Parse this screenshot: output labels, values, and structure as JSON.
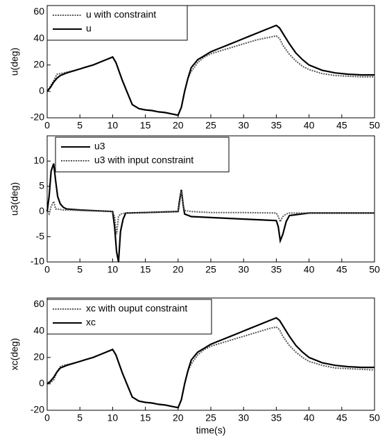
{
  "chart_data": [
    {
      "type": "line",
      "ylabel": "u(deg)",
      "legend": "upper left",
      "x": [
        0,
        0.5,
        1,
        1.5,
        2,
        2.5,
        3,
        4,
        5,
        6,
        7,
        8,
        9,
        10,
        10.5,
        11,
        11.5,
        12,
        13,
        14,
        15,
        16,
        17,
        18,
        19,
        20,
        20.5,
        21,
        21.5,
        22,
        23,
        24,
        25,
        26,
        27,
        28,
        29,
        30,
        31,
        32,
        33,
        34,
        35,
        35.5,
        36,
        37,
        38,
        39,
        40,
        42,
        44,
        46,
        48,
        50
      ],
      "xlim": [
        0,
        50
      ],
      "xticks": [
        0,
        5,
        10,
        15,
        20,
        25,
        30,
        35,
        40,
        45,
        50
      ],
      "ylim": [
        -20,
        65
      ],
      "yticks": [
        -20,
        0,
        20,
        40,
        60
      ],
      "series": [
        {
          "name": "u with constraint",
          "color": "#555555",
          "style": "dotted",
          "values": [
            0,
            4,
            8,
            13,
            13.5,
            14,
            14.5,
            15.5,
            17,
            18.5,
            20,
            22,
            24,
            26,
            22,
            15,
            8,
            2,
            -10,
            -13,
            -14,
            -14.5,
            -15.5,
            -16,
            -17,
            -18,
            -12,
            0,
            10,
            15,
            22,
            26,
            28.5,
            30,
            31.5,
            33,
            34.5,
            36,
            37.5,
            39,
            40,
            41,
            42,
            40,
            35,
            28,
            23,
            19,
            16.5,
            13.5,
            12,
            11.5,
            11,
            11
          ]
        },
        {
          "name": "u",
          "color": "#000000",
          "style": "solid",
          "values": [
            0,
            3,
            7,
            10,
            12,
            13,
            14,
            15.5,
            17,
            18.5,
            20,
            22,
            24,
            26,
            22,
            15,
            8,
            2,
            -10,
            -13,
            -14,
            -14.5,
            -15.5,
            -16,
            -17,
            -18,
            -12,
            0,
            10,
            18,
            24,
            27,
            30,
            32,
            34,
            36,
            38,
            40,
            42,
            44,
            46,
            48,
            50,
            48,
            44,
            36,
            29,
            24,
            20,
            16,
            14,
            13,
            12.5,
            12.5
          ]
        }
      ]
    },
    {
      "type": "line",
      "ylabel": "u3(deg)",
      "legend": "upper left",
      "x": [
        0,
        0.3,
        0.6,
        1,
        1.3,
        1.6,
        2,
        2.5,
        3,
        5,
        10,
        10.3,
        10.6,
        10.9,
        11.2,
        11.6,
        12,
        15,
        20,
        20.2,
        20.5,
        20.8,
        21,
        22,
        25,
        30,
        35,
        35.3,
        35.6,
        36,
        36.5,
        37,
        40,
        45,
        50
      ],
      "xlim": [
        0,
        50
      ],
      "xticks": [
        0,
        5,
        10,
        15,
        20,
        25,
        30,
        35,
        40,
        45,
        50
      ],
      "ylim": [
        -10,
        15
      ],
      "yticks": [
        -10,
        -5,
        0,
        5,
        10
      ],
      "series": [
        {
          "name": "u3",
          "color": "#000000",
          "style": "solid",
          "values": [
            0,
            3,
            8,
            9.5,
            6,
            3,
            1.5,
            0.8,
            0.5,
            0.3,
            0,
            -3,
            -8,
            -10,
            -4,
            -1.5,
            -0.3,
            -0.2,
            0,
            2,
            4.3,
            1,
            -0.5,
            -1,
            -1.2,
            -1.5,
            -1.8,
            -3,
            -5.8,
            -4.5,
            -2,
            -0.8,
            -0.3,
            -0.3,
            -0.3
          ]
        },
        {
          "name": "u3 with input constraint",
          "color": "#555555",
          "style": "dotted",
          "values": [
            0,
            -0.5,
            1,
            2,
            0.5,
            0.5,
            0.4,
            0.3,
            0.3,
            0.2,
            0,
            -1,
            -4.5,
            -1,
            -0.5,
            -0.4,
            -0.3,
            -0.2,
            0,
            1.5,
            4,
            1,
            0.2,
            0,
            -0.2,
            -0.2,
            -0.3,
            -1,
            -2,
            -1,
            -0.5,
            -0.3,
            -0.3,
            -0.3,
            -0.3
          ]
        }
      ]
    },
    {
      "type": "line",
      "ylabel": "xc(deg)",
      "xlabel": "time(s)",
      "legend": "upper left",
      "x": [
        0,
        0.5,
        1,
        1.5,
        2,
        2.5,
        3,
        4,
        5,
        6,
        7,
        8,
        9,
        10,
        10.5,
        11,
        11.5,
        12,
        13,
        14,
        15,
        16,
        17,
        18,
        19,
        20,
        20.5,
        21,
        21.5,
        22,
        23,
        24,
        25,
        26,
        27,
        28,
        29,
        30,
        31,
        32,
        33,
        34,
        35,
        35.5,
        36,
        37,
        38,
        39,
        40,
        42,
        44,
        46,
        48,
        50
      ],
      "xlim": [
        0,
        50
      ],
      "xticks": [
        0,
        5,
        10,
        15,
        20,
        25,
        30,
        35,
        40,
        45,
        50
      ],
      "ylim": [
        -20,
        65
      ],
      "yticks": [
        -20,
        0,
        20,
        40,
        60
      ],
      "series": [
        {
          "name": "xc with ouput constraint",
          "color": "#555555",
          "style": "dotted",
          "values": [
            0,
            1,
            3,
            9,
            13,
            14,
            14.5,
            15.5,
            17,
            18.5,
            20,
            22,
            24,
            26,
            22,
            15,
            8,
            2,
            -10,
            -13,
            -14,
            -14.5,
            -15.5,
            -16,
            -17,
            -18,
            -12,
            0,
            10,
            15,
            22,
            26,
            28.5,
            30,
            31.5,
            33,
            34.5,
            36,
            37.5,
            39,
            40.5,
            42,
            43,
            41,
            36,
            29,
            24,
            20,
            17,
            14,
            12,
            11.5,
            11,
            10.5
          ]
        },
        {
          "name": "xc",
          "color": "#000000",
          "style": "solid",
          "values": [
            0,
            2,
            5,
            9,
            12,
            13,
            14,
            15.5,
            17,
            18.5,
            20,
            22,
            24,
            26,
            22,
            15,
            8,
            2,
            -10,
            -13,
            -14,
            -14.5,
            -15.5,
            -16,
            -17,
            -18,
            -12,
            0,
            10,
            18,
            24,
            27,
            30,
            32,
            34,
            36,
            38,
            40,
            42,
            44,
            46,
            48,
            50,
            48,
            44,
            36,
            29,
            24,
            20,
            16,
            14,
            13,
            12.5,
            12.5
          ]
        }
      ]
    }
  ]
}
